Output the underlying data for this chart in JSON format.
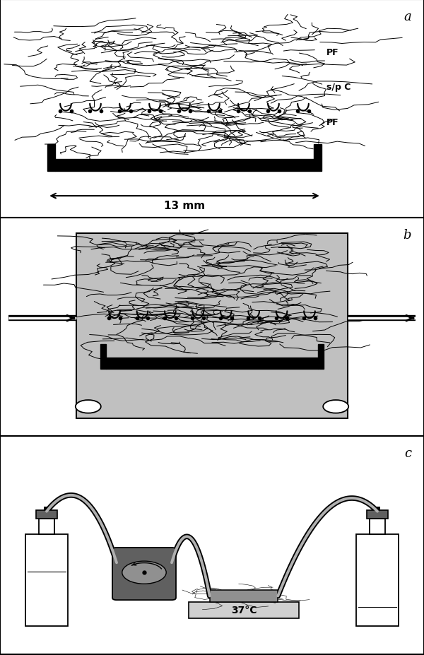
{
  "panel_a_label": "a",
  "panel_b_label": "b",
  "panel_c_label": "c",
  "label_pf_top": "PF",
  "label_spc": "s/p C",
  "label_pf_bot": "PF",
  "dim_label": "13 mm",
  "temp_label": "37°C",
  "bg_color": "#ffffff",
  "gray_box": "#c0c0c0",
  "dark_gray": "#606060",
  "mid_gray": "#909090",
  "light_gray": "#d0d0d0",
  "black": "#000000"
}
